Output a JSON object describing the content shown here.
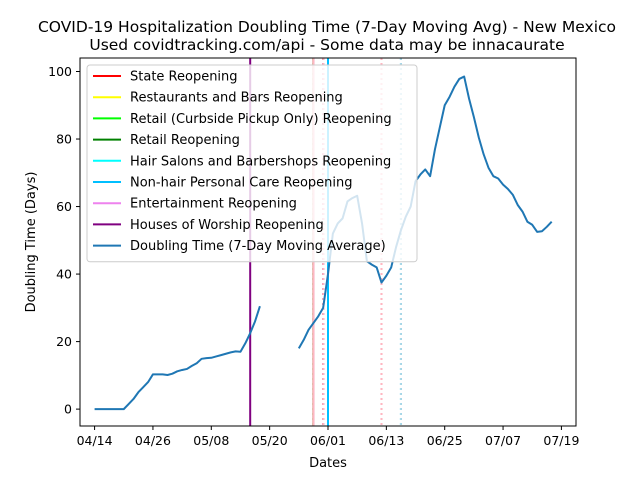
{
  "chart_data": {
    "type": "line",
    "title": "COVID-19 Hospitalization Doubling Time (7-Day Moving Avg) - New Mexico",
    "subtitle": "Used covidtracking.com/api - Some data may be innacaurate",
    "xlabel": "Dates",
    "ylabel": "Doubling Time (Days)",
    "xlim": [
      "2020-04-11",
      "2020-07-22"
    ],
    "ylim": [
      -5,
      104
    ],
    "xticks": [
      "2020-04-14",
      "2020-04-26",
      "2020-05-08",
      "2020-05-20",
      "2020-06-01",
      "2020-06-13",
      "2020-06-25",
      "2020-07-07",
      "2020-07-19"
    ],
    "xtick_labels": [
      "04/14",
      "04/26",
      "05/08",
      "05/20",
      "06/01",
      "06/13",
      "06/25",
      "07/07",
      "07/19"
    ],
    "yticks": [
      0,
      20,
      40,
      60,
      80,
      100
    ],
    "grid": false,
    "legend_position": "top-left",
    "events": [
      {
        "label": "State Reopening",
        "color": "#ff0000",
        "style": "solid",
        "date": "2020-05-29"
      },
      {
        "label": "Restaurants and Bars Reopening",
        "color": "#ffff00",
        "style": "dotted",
        "date": "2020-05-29"
      },
      {
        "label": "Retail (Curbside Pickup Only) Reopening",
        "color": "#00ff00",
        "style": "solid",
        "date": "2020-05-29"
      },
      {
        "label": "Retail Reopening",
        "color": "#008000",
        "style": "dotted",
        "date": "2020-05-29"
      },
      {
        "label": "Hair Salons and Barbershops Reopening",
        "color": "#00ffff",
        "style": "solid",
        "date": "2020-06-01"
      },
      {
        "label": "Non-hair Personal Care Reopening",
        "color": "#00bfff",
        "style": "dotted",
        "date": "2020-06-01"
      },
      {
        "label": "Entertainment Reopening",
        "color": "#ee82ee",
        "style": "solid",
        "date": "2020-05-29"
      },
      {
        "label": "Houses of Worship Reopening",
        "color": "#800080",
        "style": "solid",
        "date": "2020-05-16"
      }
    ],
    "extra_vlines": [
      {
        "date": "2020-05-29",
        "color": "#ffb6c1",
        "style": "solid"
      },
      {
        "date": "2020-05-31",
        "color": "#800080",
        "style": "dotted"
      },
      {
        "date": "2020-05-31",
        "color": "#ffb6c1",
        "style": "dotted"
      },
      {
        "date": "2020-06-01",
        "color": "#00bfff",
        "style": "solid"
      },
      {
        "date": "2020-06-12",
        "color": "#ff0000",
        "style": "dotted"
      },
      {
        "date": "2020-06-12",
        "color": "#ffb6c1",
        "style": "dotted"
      },
      {
        "date": "2020-06-16",
        "color": "#00bfff",
        "style": "dotted"
      },
      {
        "date": "2020-06-16",
        "color": "#add8e6",
        "style": "dotted"
      }
    ],
    "series": [
      {
        "name": "Doubling Time (7-Day Moving Average)",
        "color": "#1f77b4",
        "segments": [
          [
            [
              "2020-04-14",
              0
            ],
            [
              "2020-04-15",
              0
            ],
            [
              "2020-04-16",
              0
            ],
            [
              "2020-04-17",
              0
            ],
            [
              "2020-04-18",
              0
            ],
            [
              "2020-04-19",
              0
            ],
            [
              "2020-04-20",
              0
            ],
            [
              "2020-04-21",
              1.5
            ],
            [
              "2020-04-22",
              3
            ],
            [
              "2020-04-23",
              5
            ],
            [
              "2020-04-24",
              6.5
            ],
            [
              "2020-04-25",
              8
            ],
            [
              "2020-04-26",
              10.3
            ],
            [
              "2020-04-27",
              10.3
            ],
            [
              "2020-04-28",
              10.3
            ],
            [
              "2020-04-29",
              10.1
            ],
            [
              "2020-04-30",
              10.5
            ],
            [
              "2020-05-01",
              11.2
            ],
            [
              "2020-05-02",
              11.6
            ],
            [
              "2020-05-03",
              11.9
            ],
            [
              "2020-05-04",
              12.8
            ],
            [
              "2020-05-05",
              13.6
            ],
            [
              "2020-05-06",
              14.9
            ],
            [
              "2020-05-07",
              15.1
            ],
            [
              "2020-05-08",
              15.2
            ],
            [
              "2020-05-09",
              15.6
            ],
            [
              "2020-05-10",
              16
            ],
            [
              "2020-05-11",
              16.4
            ],
            [
              "2020-05-12",
              16.8
            ],
            [
              "2020-05-13",
              17.1
            ],
            [
              "2020-05-14",
              17
            ],
            [
              "2020-05-15",
              19.5
            ],
            [
              "2020-05-16",
              22.5
            ],
            [
              "2020-05-17",
              26
            ],
            [
              "2020-05-18",
              30.5
            ]
          ],
          [
            [
              "2020-05-26",
              18
            ],
            [
              "2020-05-27",
              20.5
            ],
            [
              "2020-05-28",
              23.5
            ],
            [
              "2020-05-29",
              25.5
            ],
            [
              "2020-05-30",
              27.5
            ],
            [
              "2020-05-31",
              30
            ],
            [
              "2020-06-01",
              40
            ],
            [
              "2020-06-02",
              52
            ],
            [
              "2020-06-03",
              55
            ],
            [
              "2020-06-04",
              56.5
            ],
            [
              "2020-06-05",
              61.5
            ],
            [
              "2020-06-06",
              62.5
            ],
            [
              "2020-06-07",
              63.2
            ],
            [
              "2020-06-08",
              55
            ],
            [
              "2020-06-09",
              43.8
            ],
            [
              "2020-06-10",
              42.8
            ],
            [
              "2020-06-11",
              42
            ],
            [
              "2020-06-12",
              37.5
            ],
            [
              "2020-06-13",
              39.5
            ],
            [
              "2020-06-14",
              42
            ],
            [
              "2020-06-15",
              48
            ],
            [
              "2020-06-16",
              53
            ],
            [
              "2020-06-17",
              57
            ],
            [
              "2020-06-18",
              60
            ],
            [
              "2020-06-19",
              67.5
            ],
            [
              "2020-06-20",
              69.5
            ],
            [
              "2020-06-21",
              71
            ],
            [
              "2020-06-22",
              69
            ],
            [
              "2020-06-23",
              77
            ],
            [
              "2020-06-24",
              83.5
            ],
            [
              "2020-06-25",
              90
            ],
            [
              "2020-06-26",
              92.5
            ],
            [
              "2020-06-27",
              95.5
            ],
            [
              "2020-06-28",
              97.8
            ],
            [
              "2020-06-29",
              98.5
            ],
            [
              "2020-06-30",
              92
            ],
            [
              "2020-07-01",
              86.5
            ],
            [
              "2020-07-02",
              80.5
            ],
            [
              "2020-07-03",
              75.5
            ],
            [
              "2020-07-04",
              71.5
            ],
            [
              "2020-07-05",
              69
            ],
            [
              "2020-07-06",
              68.3
            ],
            [
              "2020-07-07",
              66.5
            ],
            [
              "2020-07-08",
              65.2
            ],
            [
              "2020-07-09",
              63.5
            ],
            [
              "2020-07-10",
              60.5
            ],
            [
              "2020-07-11",
              58.5
            ],
            [
              "2020-07-12",
              55.5
            ],
            [
              "2020-07-13",
              54.6
            ],
            [
              "2020-07-14",
              52.5
            ],
            [
              "2020-07-15",
              52.7
            ],
            [
              "2020-07-16",
              54
            ],
            [
              "2020-07-17",
              55.5
            ]
          ]
        ]
      }
    ]
  }
}
